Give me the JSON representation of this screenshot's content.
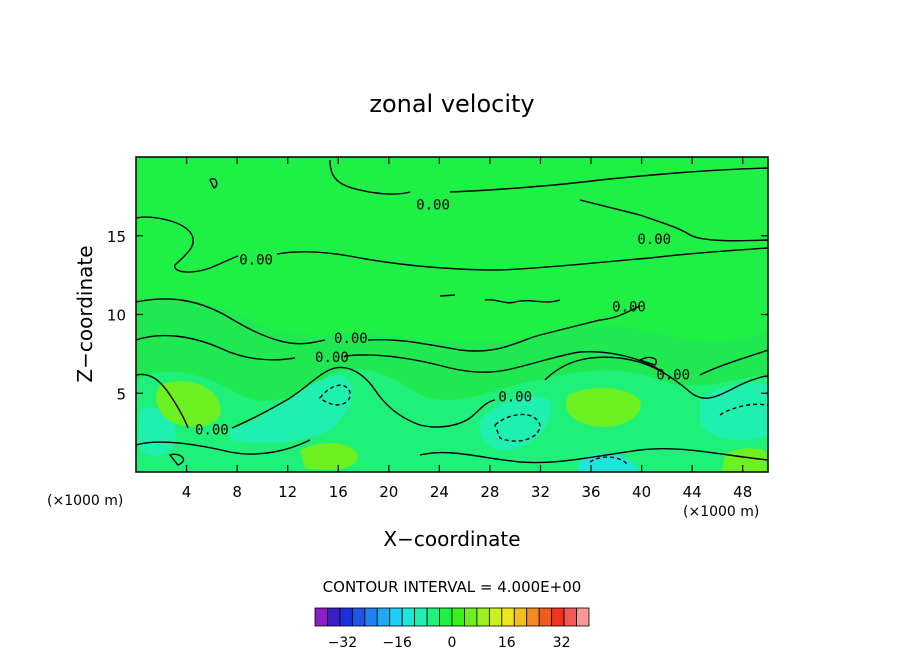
{
  "chart_data": {
    "type": "heatmap",
    "title": "zonal velocity",
    "xlabel": "X−coordinate",
    "ylabel": "Z−coordinate",
    "x_unit_left": "(×1000 m)",
    "x_unit_right": "(×1000 m)",
    "xlim": [
      0,
      50
    ],
    "ylim": [
      0,
      20
    ],
    "x_ticks": [
      4,
      8,
      12,
      16,
      20,
      24,
      28,
      32,
      36,
      40,
      44,
      48
    ],
    "y_ticks": [
      5,
      10,
      15
    ],
    "contour_interval_text": "CONTOUR INTERVAL = 4.000E+00",
    "contour_labels": [
      "0.00",
      "0.00",
      "0.00",
      "0.00",
      "0.00",
      "0.00",
      "0.00",
      "0.00",
      "0.00"
    ],
    "colorbar": {
      "tick_labels": [
        "−32",
        "−16",
        "0",
        "16",
        "32"
      ],
      "tick_values": [
        -32,
        -16,
        0,
        16,
        32
      ],
      "range": [
        -40,
        40
      ],
      "colors": [
        "#8c1fc8",
        "#3a1fc8",
        "#1f2fd8",
        "#1f55e6",
        "#1f80f0",
        "#1fa8f5",
        "#1fcdf5",
        "#1fe6d8",
        "#1ff0b0",
        "#1ff07a",
        "#1ff045",
        "#3cf01f",
        "#6cf01f",
        "#9cf01f",
        "#ccf01f",
        "#f0e61f",
        "#f0be1f",
        "#f08c1f",
        "#f05a1f",
        "#f0321f",
        "#f05a5a",
        "#f59898"
      ]
    },
    "background_color": "#1ff045"
  }
}
